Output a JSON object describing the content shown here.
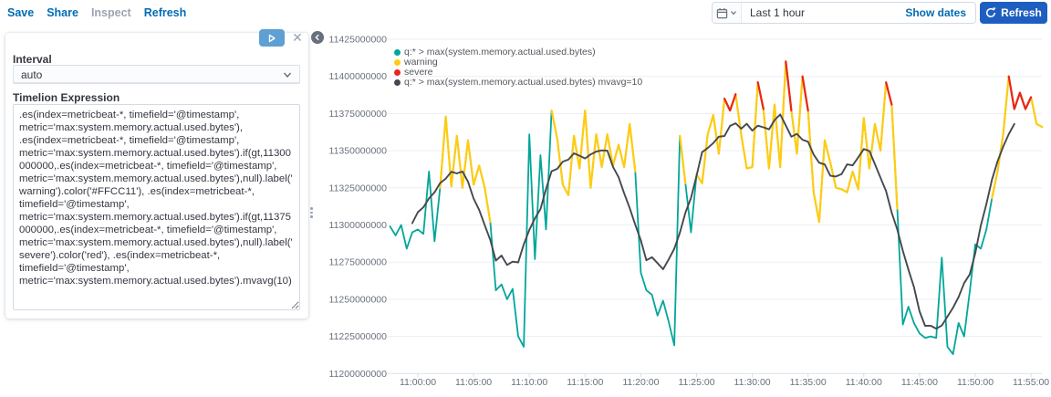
{
  "header": {
    "nav": [
      {
        "label": "Save",
        "disabled": false
      },
      {
        "label": "Share",
        "disabled": false
      },
      {
        "label": "Inspect",
        "disabled": true
      },
      {
        "label": "Refresh",
        "disabled": false
      }
    ],
    "time_picker": {
      "selected_range": "Last 1 hour",
      "show_dates_label": "Show dates",
      "refresh_button_label": "Refresh"
    }
  },
  "editor_panel": {
    "interval_label": "Interval",
    "interval_value": "auto",
    "expression_label": "Timelion Expression",
    "expression": ".es(index=metricbeat-*, timefield='@timestamp', metric='max:system.memory.actual.used.bytes'), .es(index=metricbeat-*, timefield='@timestamp', metric='max:system.memory.actual.used.bytes').if(gt,11300000000,.es(index=metricbeat-*, timefield='@timestamp', metric='max:system.memory.actual.used.bytes'),null).label('warning').color('#FFCC11'), .es(index=metricbeat-*, timefield='@timestamp', metric='max:system.memory.actual.used.bytes').if(gt,11375000000,.es(index=metricbeat-*, timefield='@timestamp', metric='max:system.memory.actual.used.bytes'),null).label('severe').color('red'), .es(index=metricbeat-*, timefield='@timestamp', metric='max:system.memory.actual.used.bytes').mvavg(10)"
  },
  "chart_data": {
    "type": "line",
    "title": "",
    "y_axis": {
      "min": 11200000000,
      "max": 11425000000,
      "tick_step": 25000000,
      "tick_labels": [
        "11425000000",
        "11400000000",
        "11375000000",
        "11350000000",
        "11325000000",
        "11300000000",
        "11275000000",
        "11250000000",
        "11225000000",
        "11200000000"
      ]
    },
    "x_axis": {
      "tick_labels": [
        "11:00:00",
        "11:05:00",
        "11:10:00",
        "11:15:00",
        "11:20:00",
        "11:25:00",
        "11:30:00",
        "11:35:00",
        "11:40:00",
        "11:45:00",
        "11:50:00",
        "11:55:00"
      ],
      "tick_minutes": [
        0,
        5,
        10,
        15,
        20,
        25,
        30,
        35,
        40,
        45,
        50,
        55
      ]
    },
    "legend_position": "top-left",
    "grid": "horizontal-only",
    "series": [
      {
        "name": "q:* > max(system.memory.actual.used.bytes)",
        "color": "#00A69B",
        "role": "base"
      },
      {
        "name": "warning",
        "color": "#FFCC11",
        "role": "overlay-above-threshold"
      },
      {
        "name": "severe",
        "color": "#E7261F",
        "role": "overlay-above-threshold"
      },
      {
        "name": "q:* > max(system.memory.actual.used.bytes) mvavg=10",
        "color": "#45484e",
        "role": "moving-average-window-10"
      }
    ],
    "thresholds_millions": {
      "warning": 11300,
      "severe": 11375
    },
    "value_scale": 1000000,
    "t_start_minutes_after_11": -2.5,
    "t_step_minutes": 0.5,
    "values_millions": [
      11299,
      11293,
      11300,
      11284,
      11295,
      11297,
      11294,
      11336,
      11289,
      11325,
      11373,
      11326,
      11360,
      11325,
      11357,
      11327,
      11340,
      11325,
      11302,
      11256,
      11260,
      11250,
      11257,
      11225,
      11218,
      11361,
      11277,
      11347,
      11297,
      11377,
      11358,
      11327,
      11320,
      11360,
      11338,
      11377,
      11325,
      11361,
      11339,
      11361,
      11340,
      11354,
      11339,
      11368,
      11336,
      11268,
      11256,
      11253,
      11239,
      11249,
      11235,
      11219,
      11360,
      11328,
      11295,
      11334,
      11328,
      11361,
      11374,
      11348,
      11385,
      11377,
      11388,
      11361,
      11338,
      11339,
      11396,
      11378,
      11338,
      11381,
      11339,
      11410,
      11377,
      11348,
      11400,
      11377,
      11322,
      11302,
      11357,
      11342,
      11325,
      11324,
      11322,
      11336,
      11324,
      11372,
      11338,
      11368,
      11350,
      11396,
      11381,
      11311,
      11233,
      11245,
      11234,
      11227,
      11224,
      11225,
      11224,
      11278,
      11218,
      11213,
      11234,
      11225,
      11255,
      11287,
      11284,
      11297,
      11318,
      11336,
      11361,
      11400,
      11378,
      11389,
      11378,
      11386,
      11368,
      11366
    ]
  }
}
